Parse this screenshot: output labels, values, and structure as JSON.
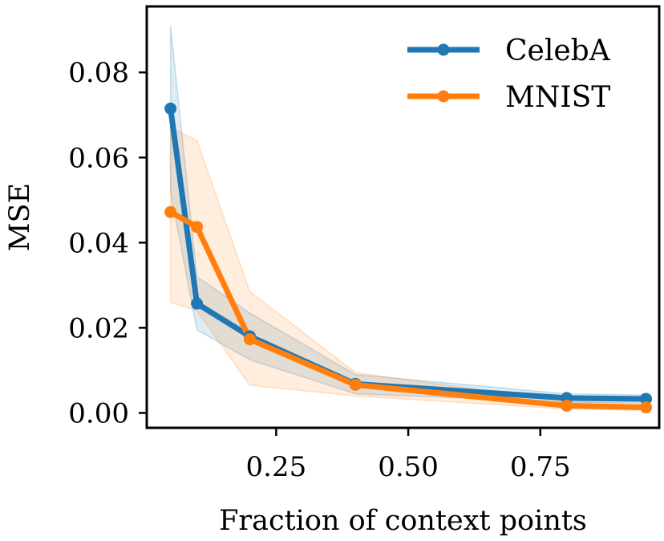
{
  "chart_data": {
    "type": "line",
    "xlabel": "Fraction of context points",
    "ylabel": "MSE",
    "xlim": [
      0.005,
      0.975
    ],
    "ylim": [
      -0.0035,
      0.0955
    ],
    "xticks": [
      0.25,
      0.5,
      0.75
    ],
    "xtick_labels": [
      "0.25",
      "0.50",
      "0.75"
    ],
    "yticks": [
      0.0,
      0.02,
      0.04,
      0.06,
      0.08
    ],
    "ytick_labels": [
      "0.00",
      "0.02",
      "0.04",
      "0.06",
      "0.08"
    ],
    "grid": false,
    "legend_position": "top-right",
    "series": [
      {
        "name": "CelebA",
        "color": "#1f77b4",
        "x": [
          0.05,
          0.1,
          0.2,
          0.4,
          0.8,
          0.95
        ],
        "y": [
          0.0715,
          0.0257,
          0.018,
          0.0068,
          0.0035,
          0.0033
        ],
        "band_lower": [
          0.052,
          0.0195,
          0.0125,
          0.0045,
          0.0025,
          0.0024
        ],
        "band_upper": [
          0.091,
          0.032,
          0.0235,
          0.009,
          0.0045,
          0.0042
        ]
      },
      {
        "name": "MNIST",
        "color": "#ff7f0e",
        "x": [
          0.05,
          0.1,
          0.2,
          0.4,
          0.8,
          0.95
        ],
        "y": [
          0.0472,
          0.0437,
          0.0173,
          0.0066,
          0.0017,
          0.0013
        ],
        "band_lower": [
          0.026,
          0.024,
          0.0065,
          0.004,
          0.0009,
          0.0006
        ],
        "band_upper": [
          0.067,
          0.064,
          0.0285,
          0.0095,
          0.0026,
          0.0021
        ]
      }
    ]
  }
}
